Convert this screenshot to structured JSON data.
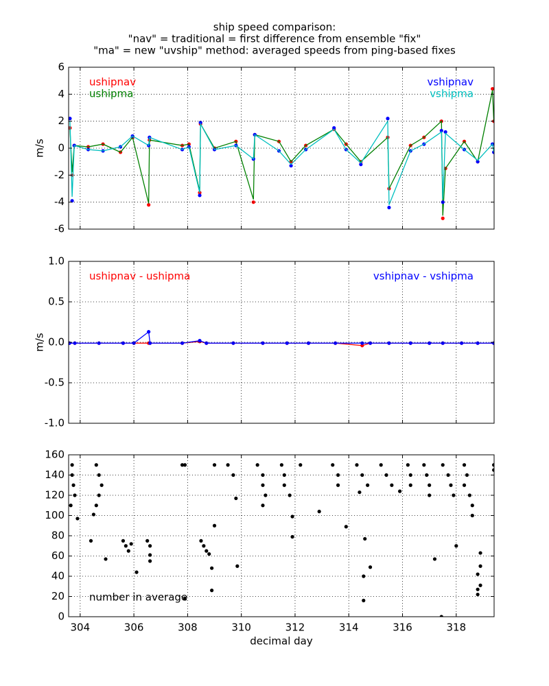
{
  "chart_data": [
    {
      "type": "line",
      "title": [
        "ship speed comparison:",
        "\"nav\" = traditional = first difference from ensemble \"fix\"",
        "\"ma\" = new \"uvship\" method: averaged speeds from ping-based fixes"
      ],
      "ylabel": "m/s",
      "xlim": [
        303.57,
        319.41
      ],
      "xticks": [
        304,
        306,
        308,
        310,
        312,
        314,
        316,
        318
      ],
      "xticklabels": false,
      "ylim": [
        -6,
        6
      ],
      "yticks": [
        -6,
        -4,
        -2,
        0,
        2,
        4,
        6
      ],
      "grid": true,
      "x": [
        303.62,
        303.7,
        303.78,
        304.3,
        304.85,
        305.5,
        305.95,
        306.55,
        306.58,
        307.8,
        308.05,
        308.45,
        308.48,
        309.0,
        309.8,
        310.45,
        310.5,
        311.4,
        311.85,
        312.4,
        313.45,
        313.9,
        314.45,
        315.45,
        315.5,
        316.3,
        316.8,
        317.45,
        317.5,
        317.6,
        318.3,
        318.8,
        319.35,
        319.4
      ],
      "series": [
        {
          "name": "ushipnav",
          "color": "#ff0000",
          "line": false,
          "marker": true,
          "loc": "upper left",
          "values": [
            1.5,
            -2,
            0.2,
            0.1,
            0.3,
            -0.3,
            0.8,
            -4.2,
            0.6,
            0.2,
            0.3,
            -3.3,
            1.8,
            0,
            0.5,
            -4.0,
            1.0,
            0.5,
            -1.0,
            0.2,
            1.4,
            0.3,
            -1.0,
            0.8,
            -3.0,
            0.2,
            0.8,
            2.0,
            -5.2,
            -1.5,
            0.5,
            -1.0,
            4.4,
            2.0
          ]
        },
        {
          "name": "ushipma",
          "color": "#008000",
          "line": true,
          "marker": false,
          "loc": "upper left",
          "values": [
            1.4,
            -1.8,
            0.2,
            0.1,
            0.3,
            -0.3,
            0.8,
            -4.1,
            0.6,
            0.2,
            0.3,
            -3.2,
            1.8,
            0,
            0.5,
            -3.8,
            1.0,
            0.5,
            -1.0,
            0.2,
            1.4,
            0.3,
            -1.0,
            0.8,
            -3.0,
            0.2,
            0.8,
            2.0,
            -5.0,
            -1.5,
            0.5,
            -1.0,
            4.3,
            2.0
          ]
        },
        {
          "name": "vshipnav",
          "color": "#0000ff",
          "line": false,
          "marker": true,
          "loc": "upper right",
          "values": [
            2.2,
            -3.9,
            0.2,
            -0.1,
            -0.2,
            0.1,
            0.9,
            0.2,
            0.8,
            -0.1,
            0.1,
            -3.5,
            1.9,
            -0.1,
            0.2,
            -0.8,
            1.0,
            -0.2,
            -1.3,
            -0.1,
            1.5,
            -0.1,
            -1.2,
            2.2,
            -4.4,
            -0.2,
            0.3,
            1.3,
            -4.0,
            1.2,
            -0.1,
            -1.0,
            0.3,
            -0.3
          ]
        },
        {
          "name": "vshipma",
          "color": "#00bfbf",
          "line": true,
          "marker": false,
          "loc": "upper right",
          "values": [
            2.0,
            -3.6,
            0.2,
            -0.1,
            -0.2,
            0.1,
            0.9,
            0.2,
            0.8,
            -0.1,
            0.1,
            -3.3,
            1.8,
            -0.1,
            0.2,
            -0.8,
            1.0,
            -0.2,
            -1.2,
            -0.1,
            1.4,
            -0.1,
            -1.1,
            2.0,
            -4.2,
            -0.2,
            0.3,
            1.2,
            -3.8,
            1.1,
            -0.1,
            -0.9,
            0.3,
            -0.3
          ]
        }
      ]
    },
    {
      "type": "line",
      "ylabel": "m/s",
      "xlim": [
        303.57,
        319.41
      ],
      "xticks": [
        304,
        306,
        308,
        310,
        312,
        314,
        316,
        318
      ],
      "xticklabels": false,
      "ylim": [
        -1,
        1
      ],
      "yticks": [
        {
          "value": -1,
          "label": "-1.0"
        },
        -0.5,
        {
          "value": 0,
          "label": "0.0"
        },
        0.5,
        {
          "value": 1,
          "label": "1.0"
        }
      ],
      "grid": true,
      "x": [
        303.6,
        303.8,
        304.7,
        305.6,
        306.0,
        306.55,
        306.6,
        307.8,
        308.45,
        308.7,
        309.7,
        310.8,
        311.7,
        312.5,
        313.5,
        314.5,
        314.8,
        315.5,
        316.3,
        317.0,
        317.5,
        318.2,
        318.8,
        319.4
      ],
      "series": [
        {
          "name": "ushipnav - ushipma",
          "color": "#ff0000",
          "line": true,
          "marker": true,
          "loc": "upper left",
          "values": [
            -0.01,
            -0.01,
            -0.01,
            -0.01,
            -0.01,
            -0.01,
            -0.01,
            -0.01,
            0.01,
            -0.01,
            -0.01,
            -0.01,
            -0.01,
            -0.01,
            -0.01,
            -0.04,
            -0.01,
            -0.01,
            -0.01,
            -0.01,
            -0.01,
            -0.01,
            -0.01,
            -0.01
          ]
        },
        {
          "name": "vshipnav - vshipma",
          "color": "#0000ff",
          "line": true,
          "marker": true,
          "loc": "upper right",
          "values": [
            -0.01,
            -0.01,
            -0.01,
            -0.01,
            -0.01,
            0.13,
            -0.01,
            -0.01,
            0.02,
            -0.01,
            -0.01,
            -0.01,
            -0.01,
            -0.01,
            -0.01,
            -0.01,
            -0.01,
            -0.01,
            -0.01,
            -0.01,
            -0.01,
            -0.01,
            -0.01,
            -0.01
          ]
        }
      ]
    },
    {
      "type": "scatter",
      "xlabel": "decimal day",
      "xlim": [
        303.57,
        319.41
      ],
      "xticks": [
        304,
        306,
        308,
        310,
        312,
        314,
        316,
        318
      ],
      "xticklabels": true,
      "ylim": [
        0,
        160
      ],
      "yticks": [
        0,
        20,
        40,
        60,
        80,
        100,
        120,
        140,
        160
      ],
      "grid": true,
      "color": "#000000",
      "annotation": "number in average",
      "annotation_loc": "lower left",
      "x": [
        303.7,
        303.7,
        303.75,
        303.8,
        303.65,
        303.9,
        304.6,
        304.7,
        304.8,
        304.7,
        304.6,
        304.5,
        304.4,
        304.95,
        305.6,
        305.7,
        305.8,
        305.9,
        306.1,
        306.5,
        306.6,
        306.6,
        306.6,
        307.9,
        307.8,
        307.9,
        308.5,
        308.6,
        308.7,
        308.8,
        308.9,
        308.9,
        309.0,
        309.0,
        309.5,
        309.7,
        309.8,
        309.85,
        310.6,
        310.8,
        310.8,
        310.9,
        310.8,
        311.5,
        311.6,
        311.6,
        311.8,
        311.9,
        311.9,
        312.2,
        312.9,
        313.4,
        313.6,
        313.6,
        313.9,
        314.3,
        314.5,
        314.4,
        314.6,
        314.55,
        314.55,
        314.8,
        314.7,
        315.2,
        315.4,
        315.6,
        315.9,
        316.2,
        316.3,
        316.3,
        316.8,
        316.9,
        317.0,
        317.0,
        317.2,
        317.5,
        317.7,
        317.8,
        317.9,
        318.0,
        317.45,
        318.3,
        318.4,
        318.3,
        318.5,
        318.6,
        318.6,
        318.8,
        318.8,
        318.8,
        318.9,
        318.9,
        318.9,
        319.4,
        319.4
      ],
      "values": [
        150,
        140,
        130,
        120,
        110,
        97,
        150,
        140,
        130,
        120,
        110,
        101,
        75,
        57,
        75,
        70,
        65,
        72,
        44,
        75,
        70,
        61,
        55,
        150,
        150,
        18,
        75,
        70,
        65,
        62,
        48,
        26,
        90,
        150,
        150,
        140,
        117,
        50,
        150,
        140,
        130,
        120,
        110,
        150,
        140,
        130,
        120,
        99,
        79,
        150,
        104,
        150,
        140,
        130,
        89,
        150,
        140,
        123,
        77,
        40,
        16,
        49,
        130,
        150,
        140,
        130,
        124,
        150,
        140,
        130,
        150,
        140,
        130,
        120,
        57,
        150,
        140,
        130,
        120,
        70,
        0,
        150,
        140,
        130,
        120,
        110,
        100,
        42,
        27,
        22,
        63,
        50,
        31,
        150,
        145
      ]
    }
  ]
}
